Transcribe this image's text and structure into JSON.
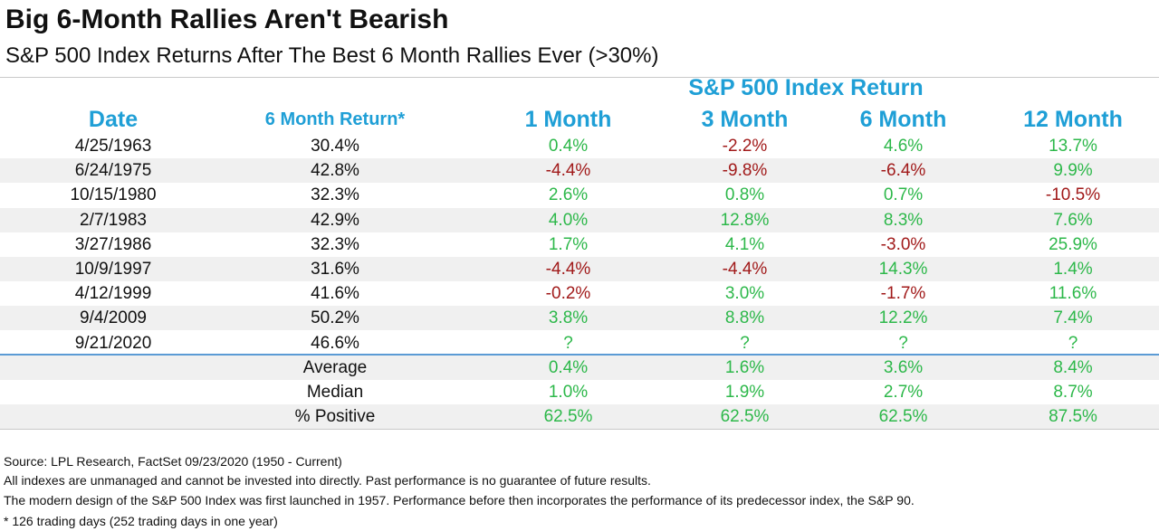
{
  "title": "Big 6-Month Rallies Aren't Bearish",
  "subtitle": "S&P 500 Index Returns After The Best 6 Month Rallies Ever (>30%)",
  "group_header": "S&P 500 Index Return",
  "columns": [
    "Date",
    "6 Month Return*",
    "1 Month",
    "3 Month",
    "6 Month",
    "12 Month"
  ],
  "rows": [
    {
      "date": "4/25/1963",
      "ret": "30.4%",
      "m1": "0.4%",
      "m3": "-2.2%",
      "m6": "4.6%",
      "m12": "13.7%"
    },
    {
      "date": "6/24/1975",
      "ret": "42.8%",
      "m1": "-4.4%",
      "m3": "-9.8%",
      "m6": "-6.4%",
      "m12": "9.9%"
    },
    {
      "date": "10/15/1980",
      "ret": "32.3%",
      "m1": "2.6%",
      "m3": "0.8%",
      "m6": "0.7%",
      "m12": "-10.5%"
    },
    {
      "date": "2/7/1983",
      "ret": "42.9%",
      "m1": "4.0%",
      "m3": "12.8%",
      "m6": "8.3%",
      "m12": "7.6%"
    },
    {
      "date": "3/27/1986",
      "ret": "32.3%",
      "m1": "1.7%",
      "m3": "4.1%",
      "m6": "-3.0%",
      "m12": "25.9%"
    },
    {
      "date": "10/9/1997",
      "ret": "31.6%",
      "m1": "-4.4%",
      "m3": "-4.4%",
      "m6": "14.3%",
      "m12": "1.4%"
    },
    {
      "date": "4/12/1999",
      "ret": "41.6%",
      "m1": "-0.2%",
      "m3": "3.0%",
      "m6": "-1.7%",
      "m12": "11.6%"
    },
    {
      "date": "9/4/2009",
      "ret": "50.2%",
      "m1": "3.8%",
      "m3": "8.8%",
      "m6": "12.2%",
      "m12": "7.4%"
    },
    {
      "date": "9/21/2020",
      "ret": "46.6%",
      "m1": "?",
      "m3": "?",
      "m6": "?",
      "m12": "?"
    }
  ],
  "summary": [
    {
      "label": "Average",
      "m1": "0.4%",
      "m3": "1.6%",
      "m6": "3.6%",
      "m12": "8.4%"
    },
    {
      "label": "Median",
      "m1": "1.0%",
      "m3": "1.9%",
      "m6": "2.7%",
      "m12": "8.7%"
    },
    {
      "label": "% Positive",
      "m1": "62.5%",
      "m3": "62.5%",
      "m6": "62.5%",
      "m12": "87.5%"
    }
  ],
  "footer": [
    "Source: LPL Research, FactSet 09/23/2020 (1950 - Current)",
    "All indexes are unmanaged and cannot be invested into directly. Past performance is no guarantee of future results.",
    "The modern design of the S&P 500 Index was first launched in 1957. Performance before then incorporates the performance of its predecessor index, the S&P 90.",
    "* 126 trading days (252 trading days in one year)"
  ],
  "colors": {
    "header_blue": "#1f9fd6",
    "positive_green": "#2db84a",
    "negative_red": "#a11a1a",
    "row_shade": "#f0f0f0",
    "divider_blue": "#5b9bd5"
  }
}
